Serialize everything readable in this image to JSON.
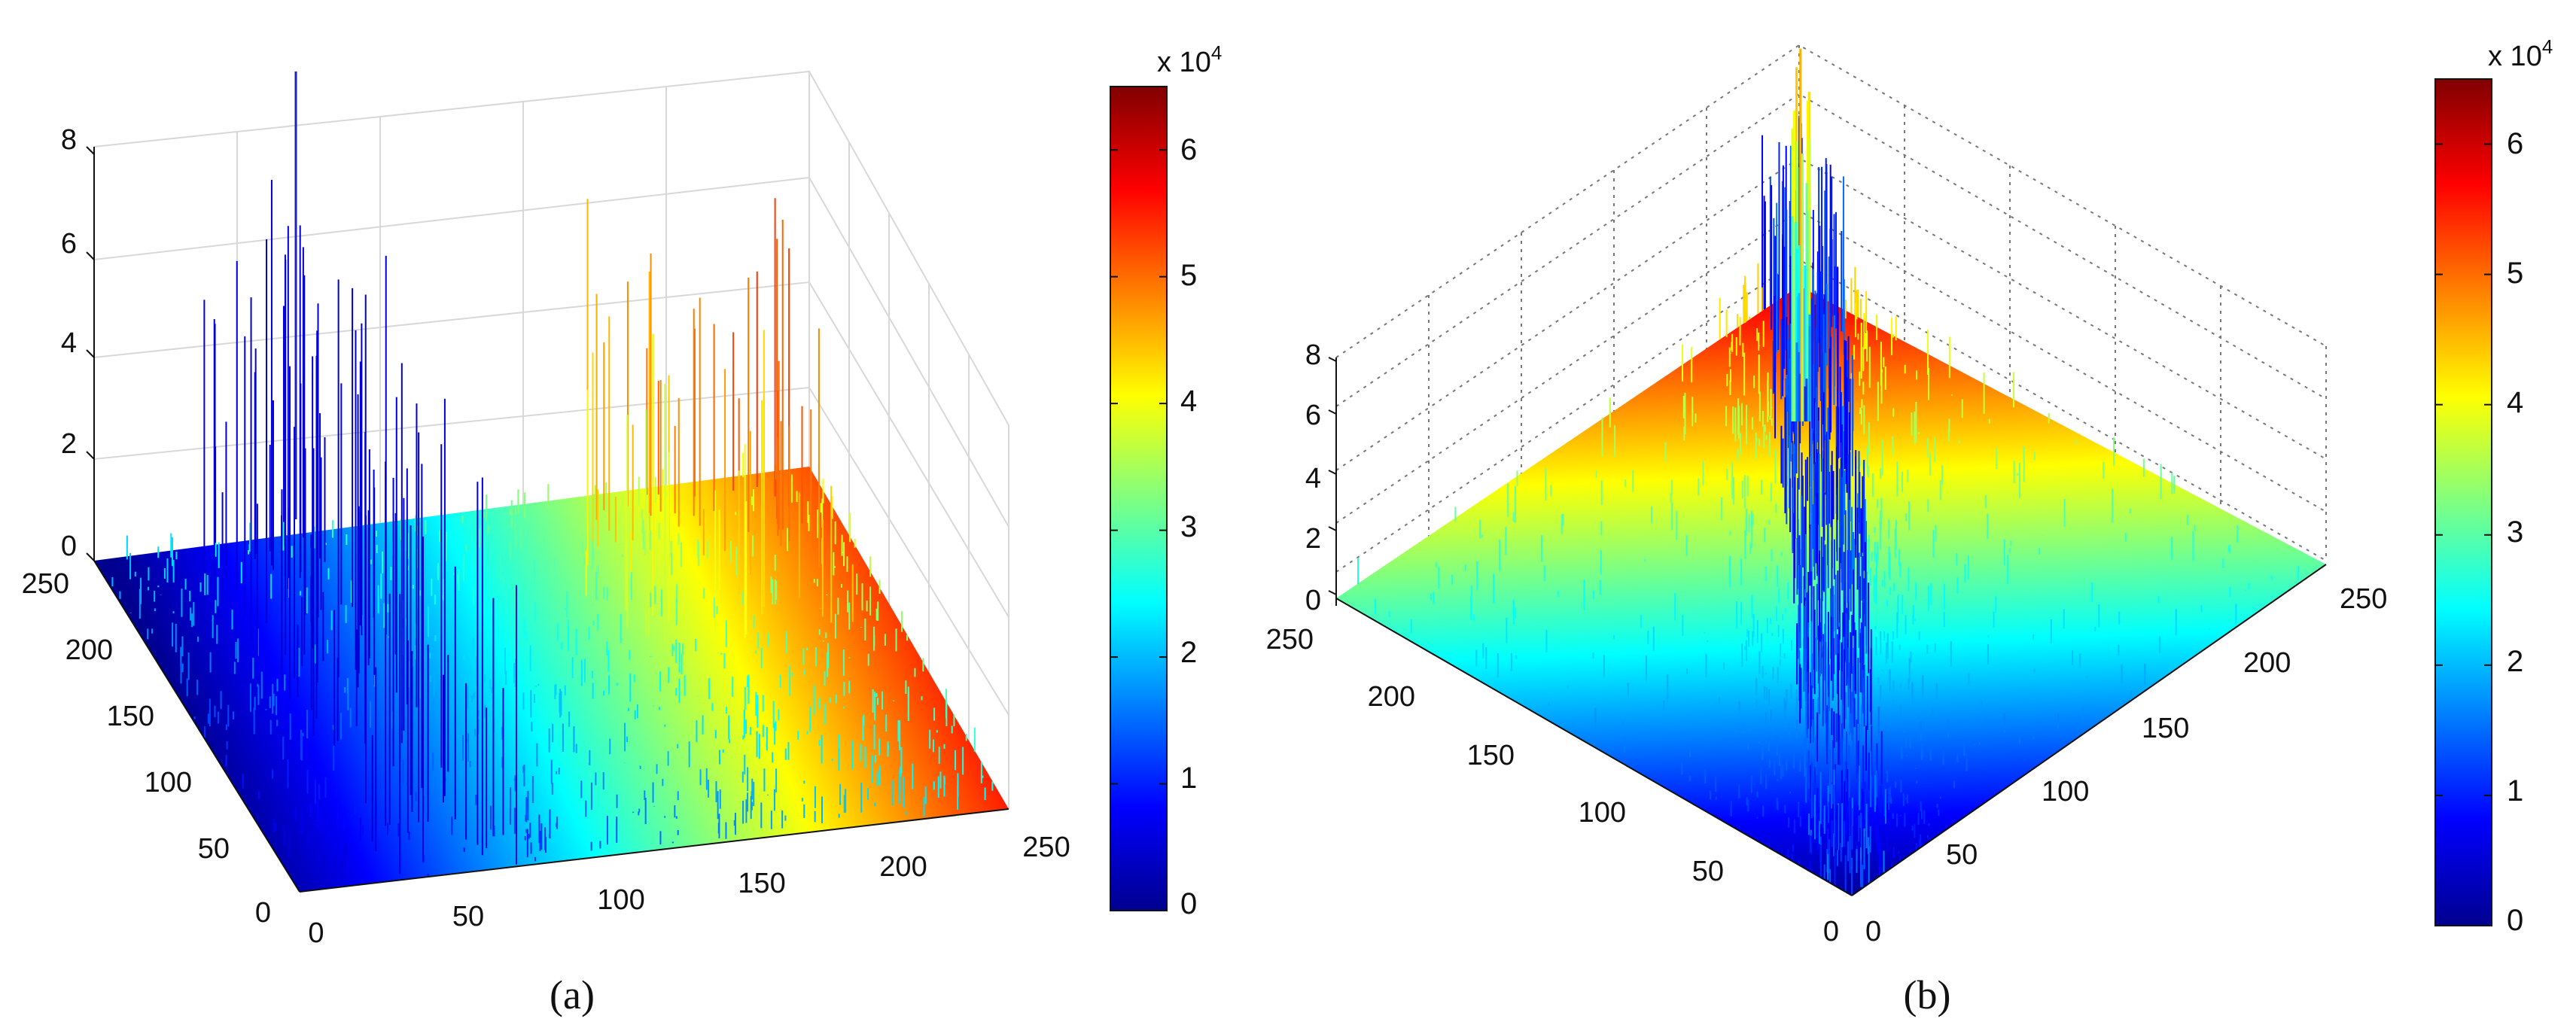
{
  "colormap": [
    "#00008f",
    "#0000ff",
    "#0080ff",
    "#00ffff",
    "#80ff80",
    "#ffff00",
    "#ff8000",
    "#ff0000",
    "#800000"
  ],
  "chart_data": [
    {
      "type": "surface3d",
      "caption": "(a)",
      "x_ticks": [
        "0",
        "50",
        "100",
        "150",
        "200",
        "250"
      ],
      "y_ticks": [
        "0",
        "50",
        "100",
        "150",
        "200",
        "250"
      ],
      "z_ticks": [
        "0",
        "2",
        "4",
        "6",
        "8"
      ],
      "xlim": [
        0,
        250
      ],
      "ylim": [
        0,
        250
      ],
      "zlim": [
        0,
        8
      ],
      "colorbar": {
        "ticks": [
          "0",
          "1",
          "2",
          "3",
          "4",
          "5",
          "6"
        ],
        "multiplier": "x 10",
        "exponent": "4",
        "range": [
          0,
          65000
        ]
      },
      "grid": true
    },
    {
      "type": "surface3d",
      "caption": "(b)",
      "x_ticks": [
        "0",
        "50",
        "100",
        "150",
        "200",
        "250"
      ],
      "y_ticks": [
        "0",
        "50",
        "100",
        "150",
        "200",
        "250"
      ],
      "z_ticks": [
        "0",
        "2",
        "4",
        "6",
        "8"
      ],
      "xlim": [
        0,
        250
      ],
      "ylim": [
        0,
        250
      ],
      "zlim": [
        0,
        8
      ],
      "colorbar": {
        "ticks": [
          "0",
          "1",
          "2",
          "3",
          "4",
          "5",
          "6"
        ],
        "multiplier": "x 10",
        "exponent": "4",
        "range": [
          0,
          65000
        ]
      },
      "grid": "dotted"
    }
  ]
}
